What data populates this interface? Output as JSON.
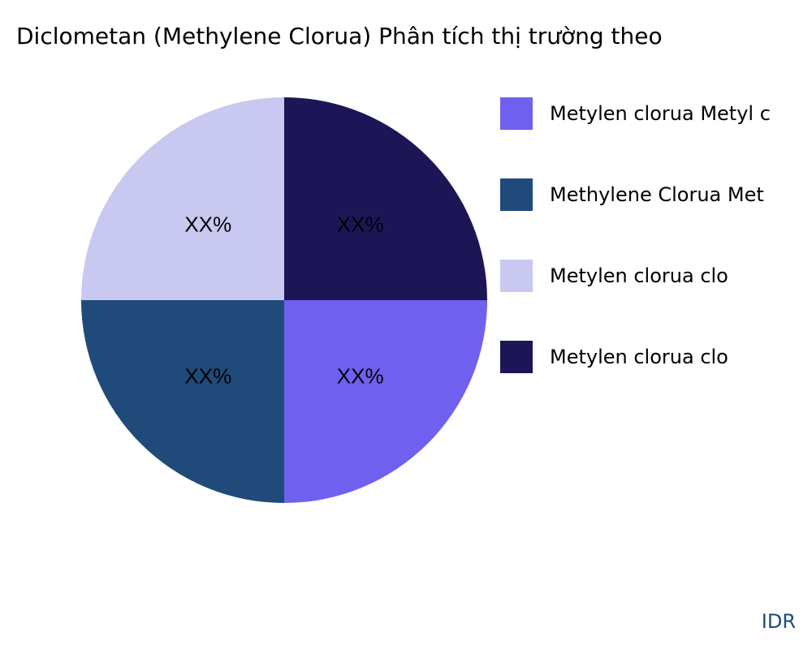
{
  "chart_data": {
    "type": "pie",
    "title": "Diclometan (Methylene Clorua) Phân tích thị trường theo",
    "categories": [
      "Metylen clorua Metyl c",
      "Methylene Clorua Met",
      "Metylen clorua clo",
      "Metylen clorua clo"
    ],
    "values": [
      25,
      25,
      25,
      25
    ],
    "slice_labels": [
      "XX%",
      "XX%",
      "XX%",
      "XX%"
    ],
    "colors": [
      "#7060F0",
      "#1F4A7A",
      "#C8C8F0",
      "#1C1656"
    ],
    "direction": "clockwise",
    "legend_position": "right"
  },
  "brand": "IDR"
}
